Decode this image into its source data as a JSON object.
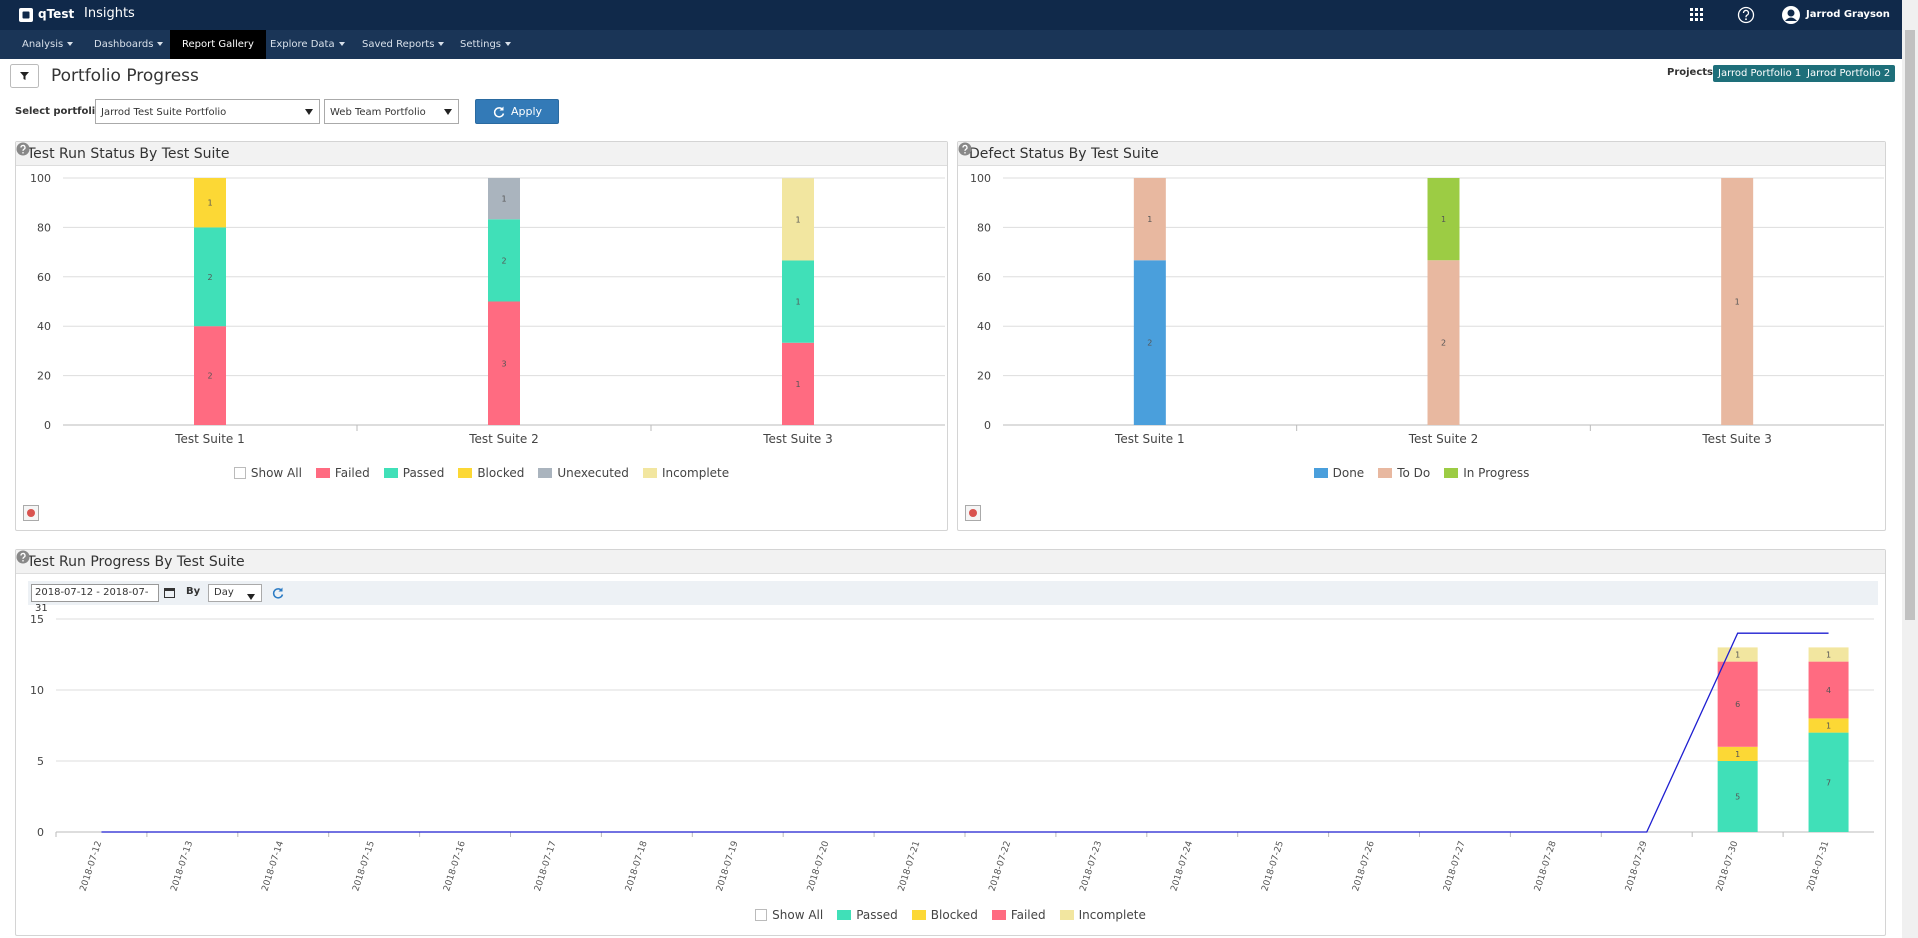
{
  "header": {
    "logo": "qTest",
    "product": "Insights",
    "user": "Jarrod Grayson"
  },
  "menu": [
    "Analysis",
    "Dashboards",
    "Report Gallery",
    "Explore Data",
    "Saved Reports",
    "Settings"
  ],
  "page": {
    "title": "Portfolio Progress",
    "projects_label": "Projects:",
    "projects": [
      "Jarrod Portfolio 1",
      "Jarrod Portfolio 2"
    ],
    "select_label": "Select portfolio:",
    "portfolios": [
      "Jarrod Test Suite Portfolio",
      "Web Team Portfolio"
    ],
    "apply": "Apply"
  },
  "progress_controls": {
    "date_range": "2018-07-12 - 2018-07-31",
    "by_label": "By",
    "period": "Day"
  },
  "chart_data": [
    {
      "type": "bar",
      "stacked": true,
      "title": "Test Run Status By Test Suite",
      "legend_toggle": "Show All",
      "categories": [
        "Test Suite 1",
        "Test Suite 2",
        "Test Suite 3"
      ],
      "series": [
        {
          "name": "Failed",
          "color": "#ff6b81",
          "values": [
            40,
            50,
            33.3
          ],
          "counts": [
            2,
            3,
            1
          ]
        },
        {
          "name": "Passed",
          "color": "#40e0b8",
          "values": [
            40,
            33.3,
            33.3
          ],
          "counts": [
            2,
            2,
            1
          ]
        },
        {
          "name": "Blocked",
          "color": "#fcd835",
          "values": [
            20,
            null,
            null
          ],
          "counts": [
            1,
            null,
            null
          ]
        },
        {
          "name": "Unexecuted",
          "color": "#aab4be",
          "values": [
            null,
            16.7,
            null
          ],
          "counts": [
            null,
            1,
            null
          ]
        },
        {
          "name": "Incomplete",
          "color": "#f2e6a0",
          "values": [
            null,
            null,
            33.3
          ],
          "counts": [
            null,
            null,
            1
          ]
        }
      ],
      "ylim": [
        0,
        100
      ],
      "yticks": [
        0,
        20,
        40,
        60,
        80,
        100
      ],
      "grid": true
    },
    {
      "type": "bar",
      "stacked": true,
      "title": "Defect Status By Test Suite",
      "categories": [
        "Test Suite 1",
        "Test Suite 2",
        "Test Suite 3"
      ],
      "series": [
        {
          "name": "Done",
          "color": "#4a9fdc",
          "values": [
            66.7,
            null,
            null
          ],
          "counts": [
            2,
            null,
            null
          ]
        },
        {
          "name": "To Do",
          "color": "#e8b8a0",
          "values": [
            33.3,
            66.7,
            100
          ],
          "counts": [
            1,
            2,
            1
          ]
        },
        {
          "name": "In Progress",
          "color": "#9ccc44",
          "values": [
            null,
            33.3,
            null
          ],
          "counts": [
            null,
            1,
            null
          ]
        }
      ],
      "ylim": [
        0,
        100
      ],
      "yticks": [
        0,
        20,
        40,
        60,
        80,
        100
      ],
      "grid": true
    },
    {
      "type": "bar",
      "stacked": true,
      "title": "Test Run Progress By Test Suite",
      "legend_toggle": "Show All",
      "categories": [
        "2018-07-12",
        "2018-07-13",
        "2018-07-14",
        "2018-07-15",
        "2018-07-16",
        "2018-07-17",
        "2018-07-18",
        "2018-07-19",
        "2018-07-20",
        "2018-07-21",
        "2018-07-22",
        "2018-07-23",
        "2018-07-24",
        "2018-07-25",
        "2018-07-26",
        "2018-07-27",
        "2018-07-28",
        "2018-07-29",
        "2018-07-30",
        "2018-07-31"
      ],
      "series": [
        {
          "name": "Passed",
          "color": "#40e0b8",
          "values": [
            null,
            null,
            null,
            null,
            null,
            null,
            null,
            null,
            null,
            null,
            null,
            null,
            null,
            null,
            null,
            null,
            null,
            null,
            5,
            7
          ]
        },
        {
          "name": "Blocked",
          "color": "#fcd835",
          "values": [
            null,
            null,
            null,
            null,
            null,
            null,
            null,
            null,
            null,
            null,
            null,
            null,
            null,
            null,
            null,
            null,
            null,
            null,
            1,
            1
          ]
        },
        {
          "name": "Failed",
          "color": "#ff6b81",
          "values": [
            null,
            null,
            null,
            null,
            null,
            null,
            null,
            null,
            null,
            null,
            null,
            null,
            null,
            null,
            null,
            null,
            null,
            null,
            6,
            4
          ]
        },
        {
          "name": "Incomplete",
          "color": "#f2e6a0",
          "values": [
            null,
            null,
            null,
            null,
            null,
            null,
            null,
            null,
            null,
            null,
            null,
            null,
            null,
            null,
            null,
            null,
            null,
            null,
            1,
            1
          ]
        },
        {
          "type": "line",
          "color": "#1f1fd1",
          "values": [
            0,
            0,
            0,
            0,
            0,
            0,
            0,
            0,
            0,
            0,
            0,
            0,
            0,
            0,
            0,
            0,
            0,
            0,
            14,
            14
          ]
        }
      ],
      "ylim": [
        0,
        15
      ],
      "yticks": [
        0,
        5,
        10,
        15
      ],
      "grid": true
    }
  ]
}
